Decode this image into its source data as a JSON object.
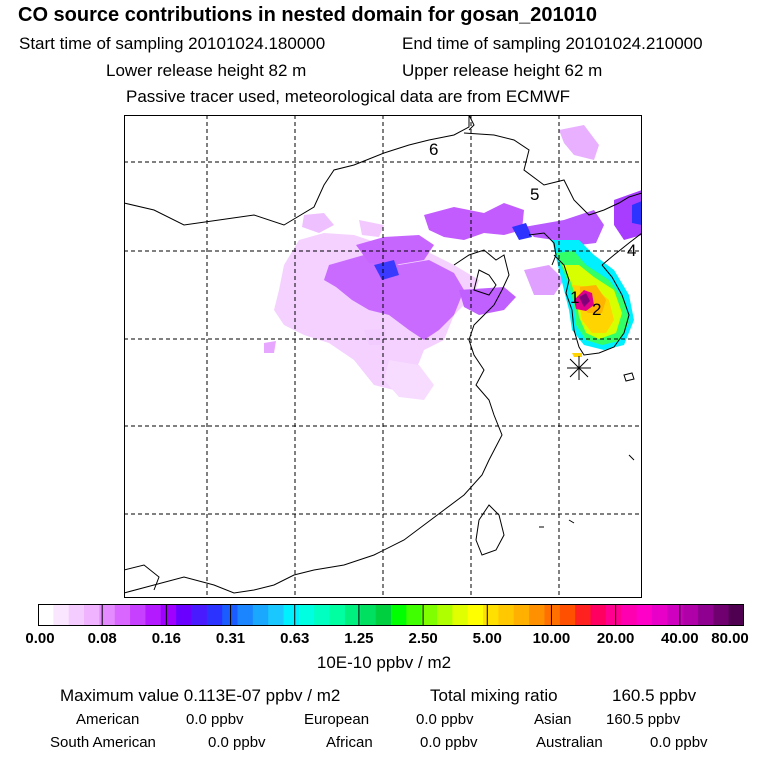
{
  "title": "CO  source contributions in nested domain for gosan_201010",
  "sampling": {
    "start_label": "Start time of sampling 20101024.180000",
    "end_label": "End time of sampling 20101024.210000"
  },
  "release": {
    "lower_label": "Lower release height   82 m",
    "upper_label": "Upper release height   62 m"
  },
  "note": "Passive tracer used, meteorological data are from ECMWF",
  "map": {
    "region_labels": [
      "6",
      "5",
      "4",
      "1",
      "2"
    ],
    "receptor_icon": "asterisk-receptor-icon"
  },
  "colorbar": {
    "ticks": [
      "0.00",
      "0.08",
      "0.16",
      "0.31",
      "0.63",
      "1.25",
      "2.50",
      "5.00",
      "10.00",
      "20.00",
      "40.00",
      "80.00"
    ],
    "colors": [
      "#ffffff",
      "#fbe6ff",
      "#f5ccff",
      "#efb3ff",
      "#e48cff",
      "#d966ff",
      "#c840ff",
      "#b31aff",
      "#a000ff",
      "#6a00ff",
      "#4a1aff",
      "#2a33ff",
      "#1a5cff",
      "#1a85ff",
      "#1aa8ff",
      "#1ac8ff",
      "#00f0ff",
      "#00ffe0",
      "#00ffc0",
      "#00ffa0",
      "#00f080",
      "#00e060",
      "#00d040",
      "#00ff00",
      "#40ff00",
      "#80ff00",
      "#b0ff00",
      "#e0ff00",
      "#ffff00",
      "#ffe000",
      "#ffc800",
      "#ffb000",
      "#ff9000",
      "#ff7000",
      "#ff5000",
      "#ff2020",
      "#ff0060",
      "#ff0090",
      "#ff00b0",
      "#ff00c8",
      "#e800c8",
      "#d000c0",
      "#b000a8",
      "#900090",
      "#700070",
      "#500050"
    ],
    "units": "10E-10 ppbv / m2"
  },
  "stats": {
    "max_label": "Maximum value  0.113E-07 ppbv / m2",
    "total_label": "Total mixing ratio",
    "total_value": "160.5 ppbv",
    "american_label": "American",
    "american_value": "0.0 ppbv",
    "european_label": "European",
    "european_value": "0.0 ppbv",
    "asian_label": "Asian",
    "asian_value": "160.5 ppbv",
    "south_american_label": "South American",
    "south_american_value": "0.0 ppbv",
    "african_label": "African",
    "african_value": "0.0 ppbv",
    "australian_label": "Australian",
    "australian_value": "0.0 ppbv"
  }
}
